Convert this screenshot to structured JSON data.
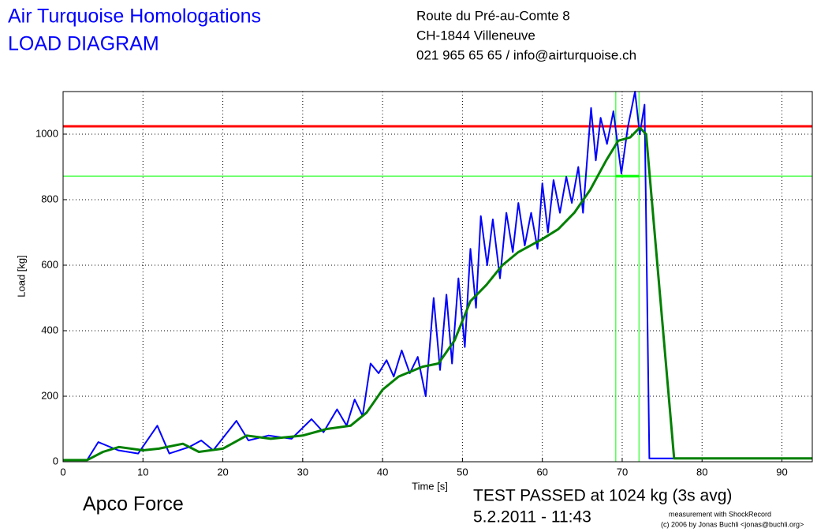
{
  "chart_data": {
    "type": "line",
    "title": "Air Turquoise Homologations",
    "subtitle": "LOAD DIAGRAM",
    "annotations": [
      "Route du Pré-au-Comte 8",
      "CH-1844 Villeneuve",
      "021 965 65 65 / info@airturquoise.ch",
      "Apco Force",
      "TEST PASSED at 1024 kg (3s avg)",
      "5.2.2011 - 11:43",
      "measurement with ShockRecord",
      "(c) 2006 by Jonas Buchli <jonas@buchli.org>"
    ],
    "x_label": "Time [s]",
    "y_label": "Load [kg]",
    "xlim": [
      0,
      93.8
    ],
    "ylim": [
      0,
      1130
    ],
    "xticks": [
      0,
      10,
      20,
      30,
      40,
      50,
      60,
      70,
      80,
      90
    ],
    "yticks": [
      0,
      200,
      400,
      600,
      800,
      1000
    ],
    "grid": true,
    "series": [
      {
        "color": "#0000ff",
        "x": [
          0,
          3,
          4.4,
          6.9,
          9.4,
          11.8,
          13.3,
          15.8,
          17.3,
          18.8,
          21.7,
          23.2,
          25.7,
          28.6,
          31.1,
          32.6,
          34.3,
          35.5,
          36.5,
          37.5,
          38.5,
          39.5,
          40.5,
          41.4,
          42.4,
          43.4,
          44.4,
          45.4,
          46.4,
          47.2,
          48.0,
          48.7,
          49.5,
          50.3,
          51.0,
          51.7,
          52.3,
          53.1,
          53.8,
          54.7,
          55.5,
          56.3,
          57.0,
          57.8,
          58.6,
          59.4,
          60.0,
          60.7,
          61.4,
          62.2,
          63.0,
          63.7,
          64.5,
          65.1,
          66.1,
          66.7,
          67.3,
          68.1,
          68.9,
          69.9,
          70.7,
          71.6,
          72.2,
          72.8,
          73.4,
          93.8
        ],
        "values": [
          5,
          5,
          60,
          35,
          25,
          110,
          25,
          45,
          65,
          35,
          125,
          65,
          80,
          70,
          130,
          90,
          160,
          110,
          190,
          140,
          300,
          270,
          310,
          260,
          340,
          270,
          320,
          200,
          500,
          280,
          510,
          300,
          560,
          350,
          650,
          470,
          750,
          600,
          740,
          560,
          760,
          640,
          790,
          660,
          760,
          650,
          850,
          700,
          860,
          760,
          870,
          790,
          900,
          760,
          1080,
          920,
          1050,
          970,
          1070,
          880,
          1020,
          1130,
          1000,
          1090,
          10,
          10
        ]
      },
      {
        "color": "#008000",
        "x": [
          0,
          3,
          5,
          7,
          10,
          12,
          15,
          17,
          20,
          23,
          26,
          30,
          33,
          36,
          38,
          40,
          42,
          45,
          47,
          49,
          51,
          53,
          55,
          57,
          60,
          62,
          64,
          66,
          68,
          69.5,
          71,
          72.2,
          73,
          76.5,
          93.8
        ],
        "values": [
          5,
          5,
          30,
          45,
          35,
          40,
          55,
          30,
          40,
          80,
          70,
          80,
          100,
          110,
          150,
          220,
          260,
          290,
          300,
          370,
          490,
          540,
          600,
          640,
          680,
          710,
          760,
          830,
          920,
          980,
          990,
          1020,
          1000,
          10,
          10
        ]
      }
    ],
    "hlines": [
      {
        "value": 1024,
        "color": "#ff0000"
      },
      {
        "value": 872,
        "color": "#00ff00"
      }
    ],
    "vlines": [
      {
        "value": 69.2,
        "color": "#00ff00"
      },
      {
        "value": 72.1,
        "color": "#00ff00"
      }
    ]
  }
}
